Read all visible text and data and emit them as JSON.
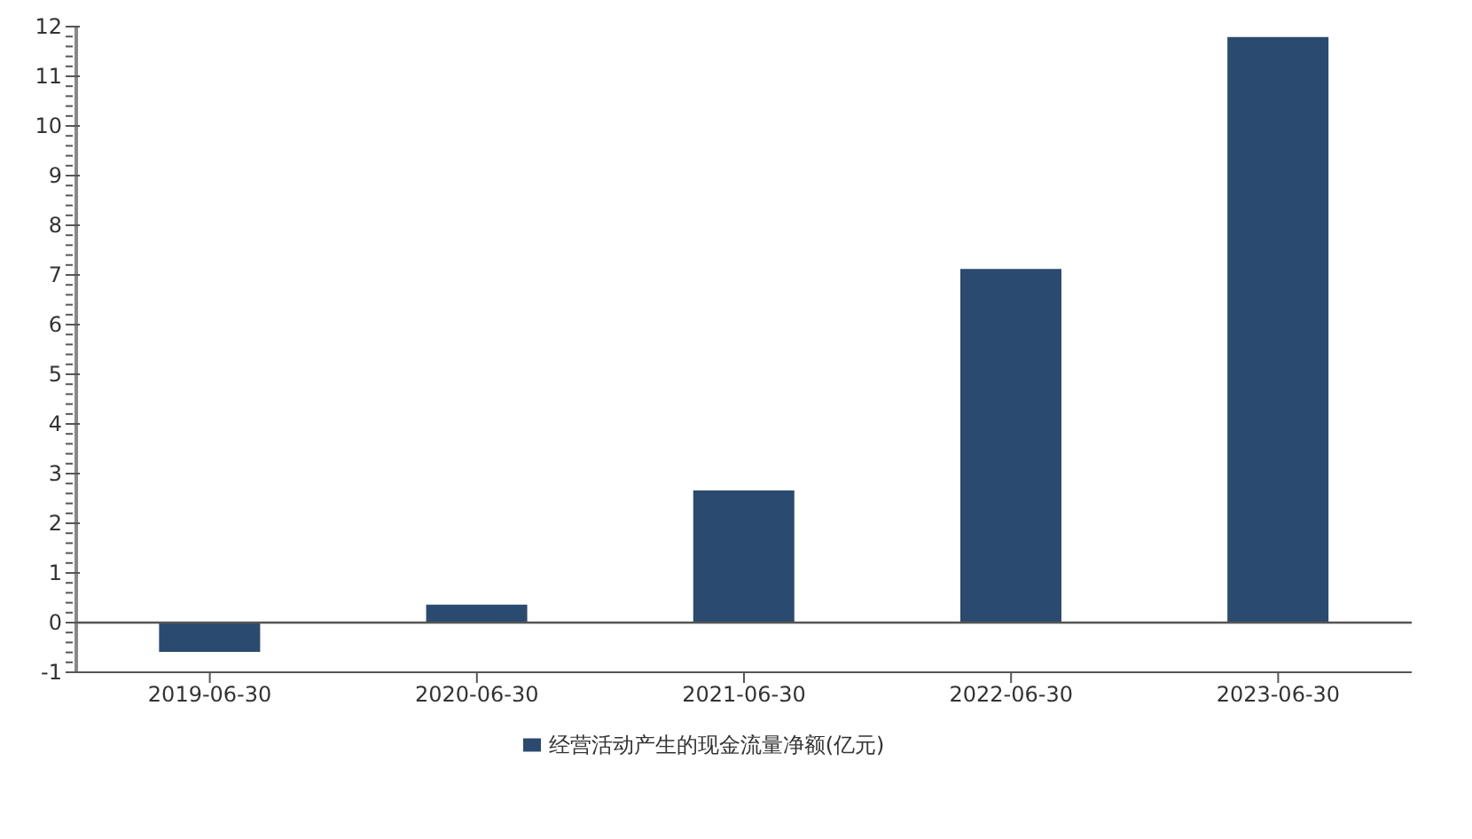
{
  "chart_data": {
    "type": "bar",
    "categories": [
      "2019-06-30",
      "2020-06-30",
      "2021-06-30",
      "2022-06-30",
      "2023-06-30"
    ],
    "series": [
      {
        "name": "经营活动产生的现金流量净额(亿元)",
        "color": "#2b4a70",
        "values": [
          -0.59,
          0.36,
          2.66,
          7.12,
          11.79
        ]
      }
    ],
    "ylim": [
      -1,
      12
    ],
    "yticks": [
      -1,
      {
        "value": -0.8,
        "label": null
      },
      {
        "value": -0.6,
        "label": null
      },
      {
        "value": -0.4,
        "label": null
      },
      {
        "value": -0.2,
        "label": null
      },
      0,
      {
        "value": 0.2,
        "label": null
      },
      {
        "value": 0.4,
        "label": null
      },
      {
        "value": 0.6,
        "label": null
      },
      {
        "value": 0.8,
        "label": null
      },
      1,
      {
        "value": 1.2,
        "label": null
      },
      {
        "value": 1.4,
        "label": null
      },
      {
        "value": 1.6,
        "label": null
      },
      {
        "value": 1.8,
        "label": null
      },
      2,
      {
        "value": 2.2,
        "label": null
      },
      {
        "value": 2.4,
        "label": null
      },
      {
        "value": 2.6,
        "label": null
      },
      {
        "value": 2.8,
        "label": null
      },
      3,
      {
        "value": 3.2,
        "label": null
      },
      {
        "value": 3.4,
        "label": null
      },
      {
        "value": 3.6,
        "label": null
      },
      {
        "value": 3.8,
        "label": null
      },
      4,
      {
        "value": 4.2,
        "label": null
      },
      {
        "value": 4.4,
        "label": null
      },
      {
        "value": 4.6,
        "label": null
      },
      {
        "value": 4.8,
        "label": null
      },
      5,
      {
        "value": 5.2,
        "label": null
      },
      {
        "value": 5.4,
        "label": null
      },
      {
        "value": 5.6,
        "label": null
      },
      {
        "value": 5.8,
        "label": null
      },
      6,
      {
        "value": 6.2,
        "label": null
      },
      {
        "value": 6.4,
        "label": null
      },
      {
        "value": 6.6,
        "label": null
      },
      {
        "value": 6.8,
        "label": null
      },
      7,
      {
        "value": 7.2,
        "label": null
      },
      {
        "value": 7.4,
        "label": null
      },
      {
        "value": 7.6,
        "label": null
      },
      {
        "value": 7.8,
        "label": null
      },
      8,
      {
        "value": 8.2,
        "label": null
      },
      {
        "value": 8.4,
        "label": null
      },
      {
        "value": 8.6,
        "label": null
      },
      {
        "value": 8.8,
        "label": null
      },
      9,
      {
        "value": 9.2,
        "label": null
      },
      {
        "value": 9.4,
        "label": null
      },
      {
        "value": 9.6,
        "label": null
      },
      {
        "value": 9.8,
        "label": null
      },
      10,
      {
        "value": 10.2,
        "label": null
      },
      {
        "value": 10.4,
        "label": null
      },
      {
        "value": 10.6,
        "label": null
      },
      {
        "value": 10.8,
        "label": null
      },
      11,
      {
        "value": 11.2,
        "label": null
      },
      {
        "value": 11.4,
        "label": null
      },
      {
        "value": 11.6,
        "label": null
      },
      {
        "value": 11.8,
        "label": null
      },
      12
    ],
    "ref_lines": [
      {
        "axis": "y",
        "value": 0,
        "color": "#555555"
      }
    ],
    "grid": false,
    "legend": "bottom"
  }
}
